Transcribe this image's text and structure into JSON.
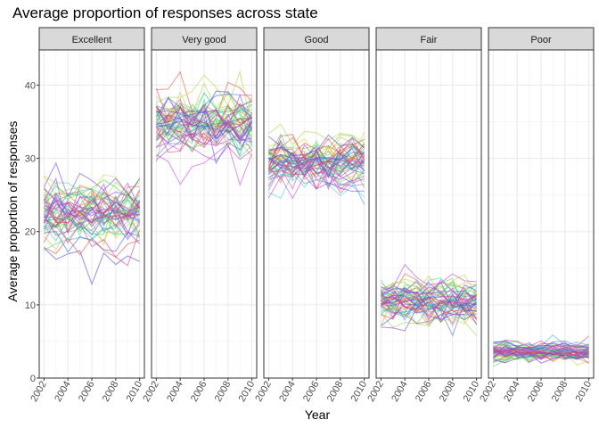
{
  "chart_data": {
    "type": "line",
    "title": "Average proportion of responses across state",
    "xlabel": "Year",
    "ylabel": "Average proportion of responses",
    "x": [
      2002,
      2003,
      2004,
      2005,
      2006,
      2007,
      2008,
      2009,
      2010
    ],
    "x_ticks": [
      "2002",
      "2004",
      "2006",
      "2008",
      "2010"
    ],
    "y_ticks": [
      "0",
      "10",
      "20",
      "30",
      "40"
    ],
    "ylim": [
      0,
      44.8
    ],
    "xlim": [
      2001.6,
      2010.4
    ],
    "grid": true,
    "legend": "none",
    "facets": [
      {
        "label": "Excellent",
        "center": 22.5,
        "spread": 3.4
      },
      {
        "label": "Very good",
        "center": 34.5,
        "spread": 3.6
      },
      {
        "label": "Good",
        "center": 29.2,
        "spread": 2.8
      },
      {
        "label": "Fair",
        "center": 10.3,
        "spread": 2.4
      },
      {
        "label": "Poor",
        "center": 3.6,
        "spread": 1.0
      }
    ],
    "series_count": 51,
    "line_opacity": 0.55
  }
}
